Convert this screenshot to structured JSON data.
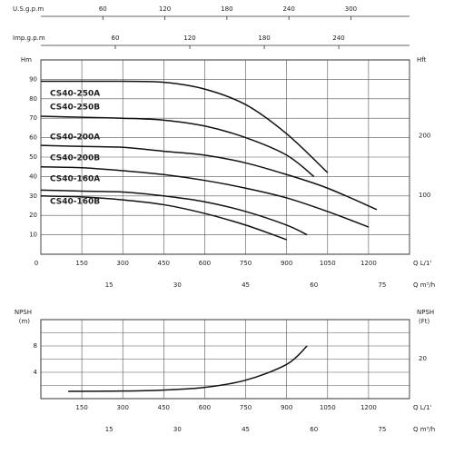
{
  "chart_data": [
    {
      "type": "line",
      "xlabel": "Q L/1'",
      "xlim": [
        0,
        1350
      ],
      "xticks": [
        0,
        150,
        300,
        450,
        600,
        750,
        900,
        1050,
        1200
      ],
      "xgrid": [
        0,
        150,
        300,
        450,
        600,
        750,
        900,
        1050,
        1200,
        1350
      ],
      "ylabel": "Hm",
      "ylim": [
        0,
        100
      ],
      "yticks": [
        10,
        20,
        30,
        40,
        50,
        60,
        70,
        80,
        90
      ],
      "ygrid": [
        10,
        20,
        30,
        40,
        50,
        60,
        70,
        80,
        90
      ],
      "y2label": "Hft",
      "y2lim": [
        0,
        328.1
      ],
      "y2ticks": [
        100,
        200
      ],
      "top_axes": [
        {
          "label": "U.S.g.p.m",
          "lim": [
            0,
            356.7
          ],
          "ticks": [
            60,
            120,
            180,
            240,
            300
          ]
        },
        {
          "label": "Imp.g.p.m",
          "lim": [
            0,
            297
          ],
          "ticks": [
            60,
            120,
            180,
            240
          ]
        }
      ],
      "x2label": "Q m³/h",
      "x2lim": [
        0,
        81
      ],
      "x2ticks": [
        15,
        30,
        45,
        60,
        75
      ],
      "series": [
        {
          "name": "CS40-250A",
          "color": "#111111",
          "x": [
            0,
            150,
            300,
            450,
            600,
            750,
            900,
            1050
          ],
          "values": [
            89,
            89,
            89,
            88.5,
            85,
            77,
            62,
            42
          ]
        },
        {
          "name": "CS40-250B",
          "color": "#111111",
          "x": [
            0,
            150,
            300,
            450,
            600,
            750,
            900,
            1000
          ],
          "values": [
            71,
            70.5,
            70,
            69,
            66,
            60,
            51,
            40
          ]
        },
        {
          "name": "CS40-200A",
          "color": "#111111",
          "x": [
            0,
            150,
            300,
            450,
            600,
            750,
            900,
            1050,
            1230
          ],
          "values": [
            56,
            55.5,
            55,
            53,
            51,
            47,
            41,
            34,
            23
          ]
        },
        {
          "name": "CS40-200B",
          "color": "#111111",
          "x": [
            0,
            150,
            300,
            450,
            600,
            750,
            900,
            1050,
            1200
          ],
          "values": [
            45,
            44.5,
            43,
            41,
            38,
            34,
            29,
            22,
            14
          ]
        },
        {
          "name": "CS40-160A",
          "color": "#111111",
          "x": [
            0,
            150,
            300,
            450,
            600,
            750,
            900,
            975
          ],
          "values": [
            33,
            32.5,
            32,
            30,
            27,
            22,
            15,
            10
          ]
        },
        {
          "name": "CS40-160B",
          "color": "#111111",
          "x": [
            0,
            150,
            300,
            450,
            600,
            750,
            900
          ],
          "values": [
            30,
            29.5,
            28,
            25.5,
            21,
            15,
            7.5
          ]
        }
      ]
    },
    {
      "type": "line",
      "xlabel": "Q L/1'",
      "xlim": [
        0,
        1350
      ],
      "xticks": [
        150,
        300,
        450,
        600,
        750,
        900,
        1050,
        1200
      ],
      "xgrid": [
        150,
        300,
        450,
        600,
        750,
        900,
        1050,
        1200,
        1350
      ],
      "ylabel": "NPSH",
      "yunit": "(m)",
      "ylim": [
        0,
        12
      ],
      "yticks": [
        4,
        8
      ],
      "ygrid": [
        2,
        4,
        6,
        8,
        10
      ],
      "y2label": "NPSH",
      "y2unit": "(Ft)",
      "y2lim": [
        0,
        39.37
      ],
      "y2ticks": [
        20
      ],
      "x2label": "Q m³/h",
      "x2lim": [
        0,
        81
      ],
      "x2ticks": [
        15,
        30,
        45,
        60,
        75
      ],
      "series": [
        {
          "name": null,
          "color": "#111111",
          "x": [
            100,
            300,
            450,
            600,
            750,
            900,
            975
          ],
          "values": [
            1.1,
            1.15,
            1.3,
            1.7,
            2.8,
            5.2,
            8
          ]
        }
      ]
    }
  ]
}
